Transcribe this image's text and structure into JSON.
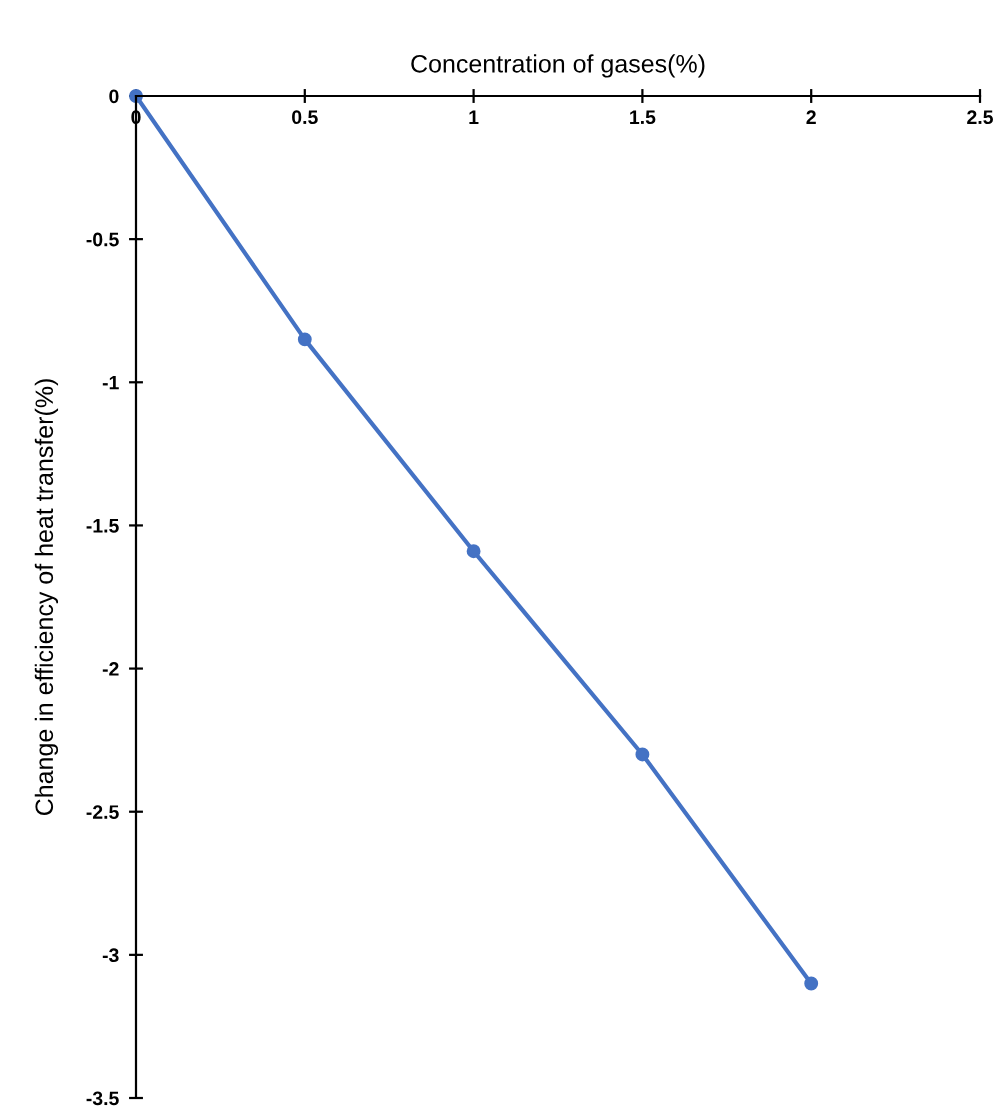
{
  "chart_data": {
    "type": "line",
    "xlabel": "Concentration of gases(%)",
    "ylabel": "Change in efficiency of heat transfer(%)",
    "x": [
      0,
      0.5,
      1,
      1.5,
      2
    ],
    "series": [
      {
        "color": "#4472c4",
        "values": [
          0,
          -0.85,
          -1.59,
          -2.3,
          -3.1
        ]
      }
    ],
    "xlim": [
      0,
      2.5
    ],
    "xticks": [
      0,
      0.5,
      1,
      1.5,
      2,
      2.5
    ],
    "ylim": [
      -3.5,
      0
    ],
    "yticks": [
      -3.5,
      -3,
      -2.5,
      -2,
      -1.5,
      -1,
      -0.5,
      0
    ],
    "marker": "circle",
    "line_style": "solid",
    "grid": false
  }
}
